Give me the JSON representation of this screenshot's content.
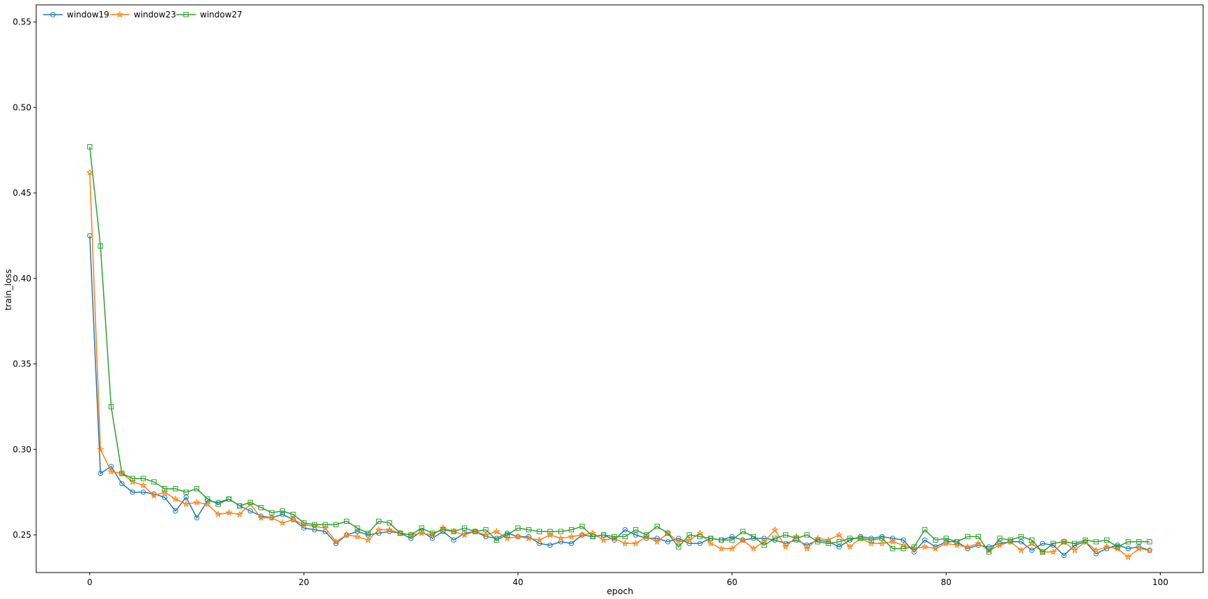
{
  "chart_data": {
    "type": "line",
    "title": "",
    "xlabel": "epoch",
    "ylabel": "train_loss",
    "xlim": [
      -5,
      104
    ],
    "ylim": [
      0.228,
      0.56
    ],
    "xticks": [
      0,
      20,
      40,
      60,
      80,
      100
    ],
    "yticks": [
      0.25,
      0.3,
      0.35,
      0.4,
      0.45,
      0.5,
      0.55
    ],
    "xtick_labels": [
      "0",
      "20",
      "40",
      "60",
      "80",
      "100"
    ],
    "ytick_labels": [
      "0.25",
      "0.30",
      "0.35",
      "0.40",
      "0.45",
      "0.50",
      "0.55"
    ],
    "grid": false,
    "legend_position": "top-left",
    "x": [
      0,
      1,
      2,
      3,
      4,
      5,
      6,
      7,
      8,
      9,
      10,
      11,
      12,
      13,
      14,
      15,
      16,
      17,
      18,
      19,
      20,
      21,
      22,
      23,
      24,
      25,
      26,
      27,
      28,
      29,
      30,
      31,
      32,
      33,
      34,
      35,
      36,
      37,
      38,
      39,
      40,
      41,
      42,
      43,
      44,
      45,
      46,
      47,
      48,
      49,
      50,
      51,
      52,
      53,
      54,
      55,
      56,
      57,
      58,
      59,
      60,
      61,
      62,
      63,
      64,
      65,
      66,
      67,
      68,
      69,
      70,
      71,
      72,
      73,
      74,
      75,
      76,
      77,
      78,
      79,
      80,
      81,
      82,
      83,
      84,
      85,
      86,
      87,
      88,
      89,
      90,
      91,
      92,
      93,
      94,
      95,
      96,
      97,
      98,
      99
    ],
    "series": [
      {
        "name": "window19",
        "color": "#1f77b4",
        "marker": "circle",
        "values": [
          0.425,
          0.286,
          0.29,
          0.28,
          0.275,
          0.275,
          0.274,
          0.272,
          0.264,
          0.272,
          0.26,
          0.27,
          0.269,
          0.271,
          0.267,
          0.264,
          0.261,
          0.26,
          0.262,
          0.259,
          0.254,
          0.253,
          0.252,
          0.245,
          0.25,
          0.252,
          0.25,
          0.251,
          0.252,
          0.251,
          0.248,
          0.252,
          0.248,
          0.252,
          0.247,
          0.251,
          0.252,
          0.249,
          0.248,
          0.251,
          0.249,
          0.249,
          0.245,
          0.244,
          0.246,
          0.245,
          0.25,
          0.249,
          0.25,
          0.247,
          0.253,
          0.25,
          0.248,
          0.248,
          0.246,
          0.248,
          0.245,
          0.245,
          0.248,
          0.247,
          0.249,
          0.247,
          0.248,
          0.248,
          0.247,
          0.245,
          0.247,
          0.244,
          0.247,
          0.246,
          0.243,
          0.247,
          0.249,
          0.248,
          0.249,
          0.248,
          0.247,
          0.24,
          0.247,
          0.243,
          0.246,
          0.246,
          0.242,
          0.244,
          0.243,
          0.245,
          0.246,
          0.246,
          0.241,
          0.245,
          0.244,
          0.238,
          0.244,
          0.246,
          0.239,
          0.242,
          0.244,
          0.242,
          0.243,
          0.241
        ]
      },
      {
        "name": "window23",
        "color": "#ff7f0e",
        "marker": "star",
        "values": [
          0.462,
          0.3,
          0.287,
          0.286,
          0.281,
          0.279,
          0.273,
          0.275,
          0.271,
          0.268,
          0.269,
          0.268,
          0.262,
          0.263,
          0.262,
          0.268,
          0.26,
          0.26,
          0.257,
          0.259,
          0.256,
          0.255,
          0.254,
          0.246,
          0.25,
          0.249,
          0.247,
          0.253,
          0.253,
          0.251,
          0.25,
          0.251,
          0.25,
          0.254,
          0.252,
          0.25,
          0.252,
          0.25,
          0.252,
          0.248,
          0.249,
          0.248,
          0.247,
          0.25,
          0.248,
          0.249,
          0.25,
          0.251,
          0.247,
          0.248,
          0.245,
          0.245,
          0.249,
          0.246,
          0.251,
          0.246,
          0.247,
          0.251,
          0.245,
          0.242,
          0.242,
          0.247,
          0.242,
          0.246,
          0.253,
          0.243,
          0.249,
          0.242,
          0.248,
          0.247,
          0.25,
          0.243,
          0.248,
          0.245,
          0.245,
          0.246,
          0.244,
          0.242,
          0.243,
          0.242,
          0.245,
          0.244,
          0.243,
          0.245,
          0.241,
          0.244,
          0.246,
          0.241,
          0.245,
          0.24,
          0.24,
          0.246,
          0.241,
          0.246,
          0.241,
          0.243,
          0.242,
          0.237,
          0.242,
          0.241
        ]
      },
      {
        "name": "window27",
        "color": "#2ca02c",
        "marker": "square",
        "values": [
          0.477,
          0.419,
          0.325,
          0.286,
          0.283,
          0.283,
          0.281,
          0.277,
          0.277,
          0.275,
          0.277,
          0.271,
          0.268,
          0.271,
          0.267,
          0.269,
          0.266,
          0.263,
          0.264,
          0.262,
          0.257,
          0.256,
          0.256,
          0.256,
          0.258,
          0.254,
          0.251,
          0.258,
          0.257,
          0.251,
          0.25,
          0.254,
          0.251,
          0.253,
          0.252,
          0.254,
          0.252,
          0.253,
          0.247,
          0.25,
          0.254,
          0.253,
          0.252,
          0.252,
          0.252,
          0.253,
          0.255,
          0.249,
          0.25,
          0.249,
          0.249,
          0.253,
          0.25,
          0.255,
          0.251,
          0.243,
          0.25,
          0.249,
          0.248,
          0.247,
          0.247,
          0.252,
          0.249,
          0.244,
          0.248,
          0.25,
          0.248,
          0.25,
          0.246,
          0.245,
          0.246,
          0.248,
          0.248,
          0.247,
          0.248,
          0.242,
          0.242,
          0.243,
          0.253,
          0.247,
          0.248,
          0.246,
          0.249,
          0.249,
          0.24,
          0.248,
          0.247,
          0.249,
          0.247,
          0.24,
          0.245,
          0.246,
          0.245,
          0.247,
          0.246,
          0.247,
          0.243,
          0.246,
          0.246,
          0.246
        ]
      }
    ]
  }
}
